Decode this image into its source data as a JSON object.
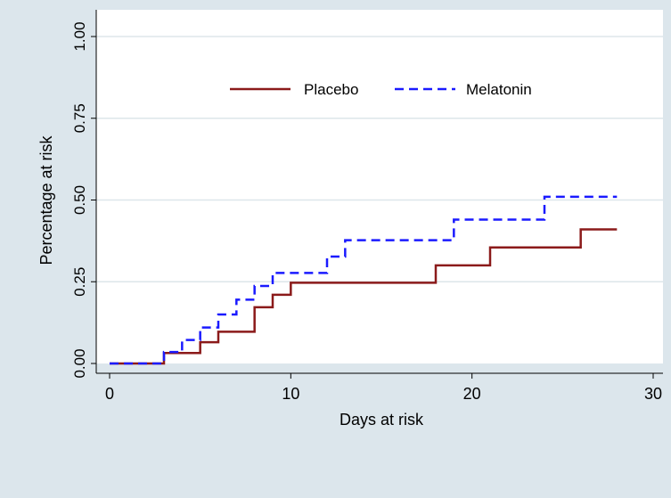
{
  "chart_data": {
    "type": "line",
    "step": true,
    "title": "",
    "xlabel": "Days at risk",
    "ylabel": "Percentage at risk",
    "xlim": [
      0,
      30
    ],
    "ylim": [
      0,
      1
    ],
    "x_ticks": [
      0,
      10,
      20,
      30
    ],
    "x_tick_labels": [
      "0",
      "10",
      "20",
      "30"
    ],
    "y_ticks": [
      0,
      0.25,
      0.5,
      0.75,
      1
    ],
    "y_tick_labels": [
      "0.00",
      "0.25",
      "0.50",
      "0.75",
      "1.00"
    ],
    "grid": "horizontal",
    "legend_position": "top-center",
    "series": [
      {
        "name": "Placebo",
        "color": "#8b1a1a",
        "dash": "solid",
        "x": [
          0,
          3,
          5,
          6,
          8,
          9,
          10,
          18,
          21,
          26,
          28
        ],
        "y": [
          0,
          0.032,
          0.065,
          0.097,
          0.172,
          0.21,
          0.247,
          0.3,
          0.355,
          0.41,
          0.41
        ]
      },
      {
        "name": "Melatonin",
        "color": "#1a1aff",
        "dash": "dashed",
        "x": [
          0,
          3,
          4,
          5,
          6,
          7,
          8,
          9,
          12,
          13,
          19,
          24,
          28
        ],
        "y": [
          0,
          0.035,
          0.072,
          0.11,
          0.15,
          0.195,
          0.237,
          0.277,
          0.327,
          0.377,
          0.44,
          0.51,
          0.51
        ]
      }
    ]
  },
  "colors": {
    "background": "#dce6ec",
    "plot_area": "#ffffff",
    "gridline": "#dde6ea"
  }
}
